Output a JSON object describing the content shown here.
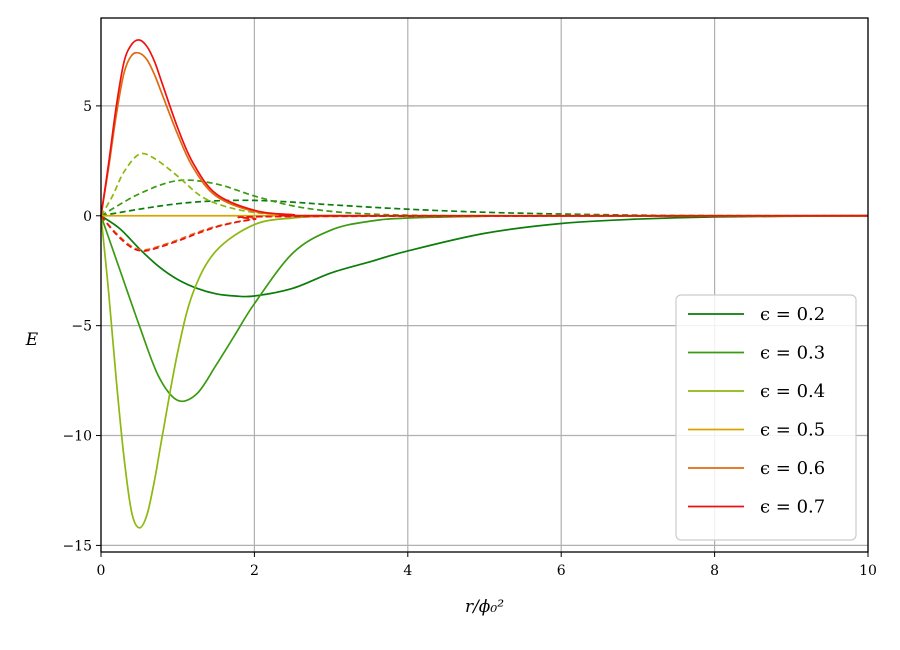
{
  "chart_data": {
    "type": "line",
    "xlabel": "r/ϕ₀²",
    "ylabel": "E",
    "xlim": [
      0,
      10
    ],
    "ylim": [
      -15.3,
      9.0
    ],
    "x_ticks": [
      0,
      2,
      4,
      6,
      8,
      10
    ],
    "y_ticks": [
      -15,
      -10,
      -5,
      0,
      5
    ],
    "x_tick_labels": [
      "0",
      "2",
      "4",
      "6",
      "8",
      "10"
    ],
    "y_tick_labels": [
      "−15",
      "−10",
      "−5",
      "0",
      "5"
    ],
    "grid": true,
    "legend_position": "bottom-right",
    "series": [
      {
        "name": "ϵ = 0.2",
        "color": "#0a7d0a",
        "style": "solid",
        "x": [
          0,
          0.25,
          0.5,
          0.75,
          1.0,
          1.25,
          1.5,
          1.75,
          2.0,
          2.5,
          3.0,
          3.5,
          4.0,
          5.0,
          6.0,
          7.0,
          8.0,
          10.0
        ],
        "y": [
          0,
          -0.6,
          -1.5,
          -2.3,
          -2.9,
          -3.3,
          -3.55,
          -3.65,
          -3.65,
          -3.3,
          -2.6,
          -2.1,
          -1.6,
          -0.8,
          -0.35,
          -0.15,
          -0.05,
          0
        ]
      },
      {
        "name": "",
        "color": "#0a7d0a",
        "style": "dashed",
        "x": [
          0,
          0.5,
          1.0,
          1.5,
          2.0,
          2.5,
          3.0,
          4.0,
          5.0,
          6.0,
          7.0,
          8.0,
          10.0
        ],
        "y": [
          0,
          0.3,
          0.55,
          0.68,
          0.7,
          0.62,
          0.5,
          0.3,
          0.16,
          0.08,
          0.03,
          0.01,
          0
        ]
      },
      {
        "name": "ϵ = 0.3",
        "color": "#3a9a10",
        "style": "solid",
        "x": [
          0,
          0.25,
          0.5,
          0.75,
          1.0,
          1.25,
          1.5,
          1.75,
          2.0,
          2.5,
          3.0,
          3.5,
          4.0,
          5.0,
          6.0,
          10.0
        ],
        "y": [
          0,
          -2.5,
          -5.0,
          -7.3,
          -8.4,
          -8.1,
          -6.8,
          -5.4,
          -4.0,
          -1.7,
          -0.65,
          -0.25,
          -0.1,
          -0.02,
          0,
          0
        ]
      },
      {
        "name": "",
        "color": "#3a9a10",
        "style": "dashed",
        "x": [
          0,
          0.5,
          1.0,
          1.5,
          2.0,
          2.5,
          3.0,
          3.5,
          4.0,
          5.0,
          10.0
        ],
        "y": [
          0,
          1.0,
          1.6,
          1.45,
          0.9,
          0.45,
          0.2,
          0.08,
          0.03,
          0,
          0
        ]
      },
      {
        "name": "ϵ = 0.4",
        "color": "#8cb80f",
        "style": "solid",
        "x": [
          0,
          0.1,
          0.2,
          0.3,
          0.4,
          0.5,
          0.6,
          0.7,
          0.8,
          1.0,
          1.2,
          1.5,
          2.0,
          2.5,
          3.0,
          4.0,
          10.0
        ],
        "y": [
          0,
          -3.5,
          -7.5,
          -11.0,
          -13.5,
          -14.2,
          -13.6,
          -12.0,
          -10.0,
          -6.2,
          -3.5,
          -1.6,
          -0.4,
          -0.1,
          -0.02,
          0,
          0
        ]
      },
      {
        "name": "",
        "color": "#8cb80f",
        "style": "dashed",
        "x": [
          0,
          0.15,
          0.3,
          0.5,
          0.7,
          1.0,
          1.3,
          1.6,
          2.0,
          2.5,
          3.0,
          10.0
        ],
        "y": [
          0,
          0.9,
          2.0,
          2.8,
          2.6,
          1.8,
          0.9,
          0.45,
          0.15,
          0.04,
          0,
          0
        ]
      },
      {
        "name": "ϵ = 0.5",
        "color": "#d9a400",
        "style": "solid",
        "x": [
          0,
          10.0
        ],
        "y": [
          0,
          0
        ]
      },
      {
        "name": "ϵ = 0.6",
        "color": "#e06a10",
        "style": "solid",
        "x": [
          0,
          0.1,
          0.2,
          0.3,
          0.4,
          0.5,
          0.6,
          0.7,
          0.8,
          1.0,
          1.2,
          1.5,
          2.0,
          2.5,
          3.0,
          10.0
        ],
        "y": [
          0,
          2.2,
          4.6,
          6.5,
          7.3,
          7.4,
          7.1,
          6.4,
          5.5,
          3.7,
          2.2,
          0.9,
          0.2,
          0.05,
          0,
          0
        ]
      },
      {
        "name": "",
        "color": "#e06a10",
        "style": "dashed",
        "x": [
          0,
          0.2,
          0.4,
          0.55,
          0.7,
          1.0,
          1.3,
          1.6,
          2.0,
          2.5,
          10.0
        ],
        "y": [
          0,
          -0.8,
          -1.4,
          -1.55,
          -1.45,
          -1.1,
          -0.7,
          -0.4,
          -0.15,
          -0.03,
          0
        ]
      },
      {
        "name": "ϵ = 0.7",
        "color": "#f01010",
        "style": "solid",
        "x": [
          0,
          0.1,
          0.2,
          0.3,
          0.4,
          0.5,
          0.6,
          0.7,
          0.8,
          1.0,
          1.2,
          1.5,
          2.0,
          2.5,
          3.0,
          10.0
        ],
        "y": [
          0,
          2.4,
          5.0,
          7.0,
          7.8,
          8.0,
          7.7,
          7.0,
          6.0,
          4.0,
          2.4,
          1.0,
          0.25,
          0.05,
          0,
          0
        ]
      },
      {
        "name": "",
        "color": "#f01010",
        "style": "dashed",
        "x": [
          0,
          0.2,
          0.4,
          0.55,
          0.7,
          1.0,
          1.3,
          1.6,
          2.0,
          2.5,
          10.0
        ],
        "y": [
          0,
          -0.85,
          -1.45,
          -1.6,
          -1.5,
          -1.15,
          -0.75,
          -0.42,
          -0.16,
          -0.03,
          0
        ]
      }
    ]
  }
}
